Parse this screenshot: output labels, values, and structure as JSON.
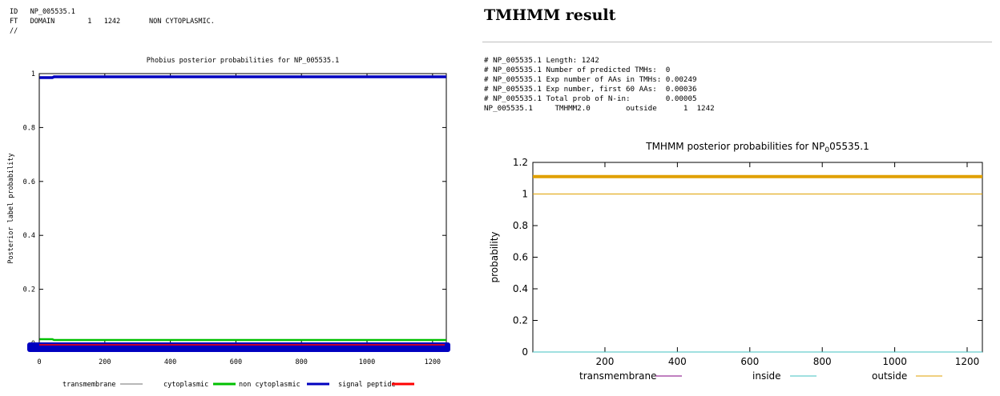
{
  "phobius": {
    "header_lines": [
      "ID   NP_005535.1",
      "FT   DOMAIN        1   1242       NON CYTOPLASMIC.",
      "//"
    ]
  },
  "tmhmm": {
    "title": "TMHMM result",
    "summary_lines": [
      "# NP_005535.1 Length: 1242",
      "# NP_005535.1 Number of predicted TMHs:  0",
      "# NP_005535.1 Exp number of AAs in TMHs: 0.00249",
      "# NP_005535.1 Exp number, first 60 AAs:  0.00036",
      "# NP_005535.1 Total prob of N-in:        0.00005",
      "NP_005535.1     TMHMM2.0        outside      1  1242"
    ]
  },
  "chart_data": [
    {
      "type": "line",
      "title": "Phobius posterior probabilities for NP_005535.1",
      "xlabel": "",
      "ylabel": "Posterior label probability",
      "xlim": [
        0,
        1242
      ],
      "ylim": [
        0,
        1
      ],
      "x_ticks": [
        0,
        200,
        400,
        600,
        800,
        1000,
        1200
      ],
      "y_ticks": [
        0,
        0.2,
        0.4,
        0.6,
        0.8,
        1
      ],
      "x_tick_labels": [
        "0",
        "200",
        "400",
        "600",
        "800",
        "1000",
        "1200"
      ],
      "y_tick_labels": [
        "0",
        "0.2",
        "0.4",
        "0.6",
        "0.8",
        "1"
      ],
      "grid": false,
      "legend_position": "bottom",
      "series": [
        {
          "name": "transmembrane",
          "color": "#a0a0a0",
          "x": [
            1,
            1242
          ],
          "y": [
            0,
            0
          ]
        },
        {
          "name": "cytoplasmic",
          "color": "#00c000",
          "x": [
            1,
            40,
            45,
            1242
          ],
          "y": [
            0.015,
            0.015,
            0.012,
            0.012
          ]
        },
        {
          "name": "non cytoplasmic",
          "color": "#0000c0",
          "x": [
            1,
            40,
            45,
            1242
          ],
          "y": [
            0.985,
            0.985,
            0.988,
            0.988
          ]
        },
        {
          "name": "signal peptide",
          "color": "#ff0000",
          "x": [
            1,
            1242
          ],
          "y": [
            0,
            0
          ]
        }
      ]
    },
    {
      "type": "line",
      "title": "TMHMM posterior probabilities for NP_005535.1",
      "title_parts": [
        "TMHMM posterior probabilities for NP",
        "0",
        "05535.1"
      ],
      "xlabel": "",
      "ylabel": "probability",
      "xlim": [
        1,
        1242
      ],
      "ylim": [
        0,
        1.2
      ],
      "x_ticks": [
        200,
        400,
        600,
        800,
        1000,
        1200
      ],
      "y_ticks": [
        0,
        0.2,
        0.4,
        0.6,
        0.8,
        1,
        1.2
      ],
      "x_tick_labels": [
        "200",
        "400",
        "600",
        "800",
        "1000",
        "1200"
      ],
      "y_tick_labels": [
        "0",
        "0.2",
        "0.4",
        "0.6",
        "0.8",
        "1",
        "1.2"
      ],
      "grid": false,
      "legend_position": "bottom",
      "series": [
        {
          "name": "transmembrane",
          "color": "#800080",
          "x": [
            1,
            1242
          ],
          "y": [
            0,
            0
          ]
        },
        {
          "name": "inside",
          "color": "#40c0c0",
          "x": [
            1,
            1242
          ],
          "y": [
            0,
            0
          ]
        },
        {
          "name": "outside",
          "color": "#e0a000",
          "x": [
            1,
            1242
          ],
          "y": [
            1,
            1
          ]
        }
      ],
      "overlay_bar": {
        "color": "#e0a000",
        "x": [
          1,
          1242
        ],
        "value": 1.11
      }
    }
  ]
}
